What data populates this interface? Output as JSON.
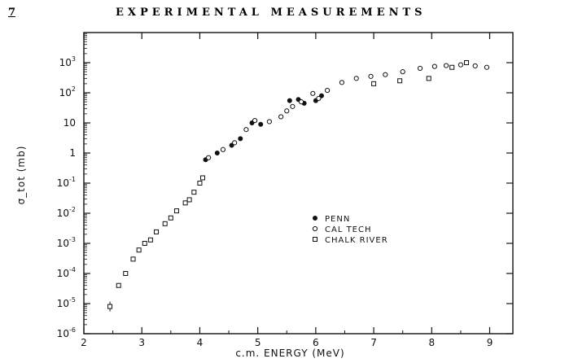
{
  "header": {
    "page_number": "7",
    "title": "EXPERIMENTAL MEASUREMENTS"
  },
  "chart_data": {
    "type": "scatter",
    "title": "",
    "xlabel": "c.m. ENERGY (MeV)",
    "ylabel": "σ_tot (mb)",
    "xlim": [
      2,
      9.4
    ],
    "ylim": [
      1e-06,
      10000.0
    ],
    "yscale": "log",
    "grid": false,
    "legend_position": "center-right",
    "x_ticks": [
      2,
      3,
      4,
      5,
      6,
      7,
      8,
      9
    ],
    "y_tick_labels": [
      {
        "base": "10",
        "exp": "-6",
        "value": 1e-06
      },
      {
        "base": "10",
        "exp": "-5",
        "value": 1e-05
      },
      {
        "base": "10",
        "exp": "-4",
        "value": 0.0001
      },
      {
        "base": "10",
        "exp": "-3",
        "value": 0.001
      },
      {
        "base": "10",
        "exp": "-2",
        "value": 0.01
      },
      {
        "base": "10",
        "exp": "-1",
        "value": 0.1
      },
      {
        "base": "1",
        "exp": "",
        "value": 1
      },
      {
        "base": "10",
        "exp": "",
        "value": 10
      },
      {
        "base": "10",
        "exp": "2",
        "value": 100
      },
      {
        "base": "10",
        "exp": "3",
        "value": 1000
      }
    ],
    "series": [
      {
        "name": "PENN",
        "marker": "filled-circle",
        "points": [
          [
            4.1,
            0.6
          ],
          [
            4.3,
            1.0
          ],
          [
            4.55,
            1.8
          ],
          [
            4.7,
            3
          ],
          [
            4.9,
            10
          ],
          [
            5.05,
            9
          ],
          [
            5.55,
            55
          ],
          [
            5.7,
            60
          ],
          [
            5.8,
            45
          ],
          [
            6.0,
            55
          ],
          [
            6.1,
            80
          ]
        ]
      },
      {
        "name": "CAL TECH",
        "marker": "open-circle",
        "points": [
          [
            4.15,
            0.7
          ],
          [
            4.4,
            1.3
          ],
          [
            4.6,
            2.2
          ],
          [
            4.8,
            6
          ],
          [
            4.95,
            12
          ],
          [
            5.2,
            11
          ],
          [
            5.4,
            16
          ],
          [
            5.5,
            25
          ],
          [
            5.6,
            35
          ],
          [
            5.75,
            50
          ],
          [
            5.95,
            95
          ],
          [
            6.05,
            65
          ],
          [
            6.2,
            120
          ],
          [
            6.45,
            220
          ],
          [
            6.7,
            300
          ],
          [
            6.95,
            350
          ],
          [
            7.2,
            400
          ],
          [
            7.5,
            500
          ],
          [
            7.8,
            650
          ],
          [
            8.05,
            750
          ],
          [
            8.25,
            800
          ],
          [
            8.5,
            850
          ],
          [
            8.75,
            780
          ],
          [
            8.95,
            700
          ]
        ]
      },
      {
        "name": "CHALK RIVER",
        "marker": "open-square",
        "points": [
          [
            2.45,
            8e-06
          ],
          [
            2.6,
            4e-05
          ],
          [
            2.72,
            0.0001
          ],
          [
            2.85,
            0.0003
          ],
          [
            2.95,
            0.0006
          ],
          [
            3.05,
            0.001
          ],
          [
            3.15,
            0.0013
          ],
          [
            3.25,
            0.0024
          ],
          [
            3.4,
            0.0045
          ],
          [
            3.5,
            0.007
          ],
          [
            3.6,
            0.012
          ],
          [
            3.75,
            0.022
          ],
          [
            3.82,
            0.028
          ],
          [
            3.9,
            0.05
          ],
          [
            4.0,
            0.1
          ],
          [
            4.05,
            0.15
          ],
          [
            7.0,
            200
          ],
          [
            7.45,
            250
          ],
          [
            7.95,
            300
          ],
          [
            8.35,
            700
          ],
          [
            8.6,
            1000
          ]
        ]
      }
    ]
  }
}
